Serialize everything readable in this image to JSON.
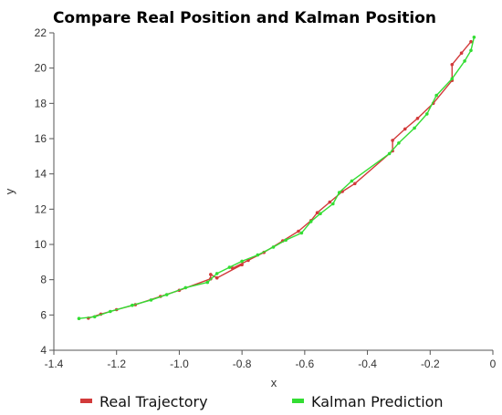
{
  "chart_data": {
    "type": "line",
    "title": "Compare Real  Position and Kalman Position",
    "xlabel": "x",
    "ylabel": "y",
    "xlim": [
      -1.4,
      0
    ],
    "ylim": [
      4,
      22
    ],
    "xticks": [
      -1.4,
      -1.2,
      -1.0,
      -0.8,
      -0.6,
      -0.4,
      -0.2,
      0
    ],
    "xtick_labels": [
      "-1.4",
      "-1.2",
      "-1.0",
      "-0.8",
      "-0.6",
      "-0.4",
      "-0.2",
      "0"
    ],
    "yticks": [
      4,
      6,
      8,
      10,
      12,
      14,
      16,
      18,
      20,
      22
    ],
    "ytick_labels": [
      "4",
      "6",
      "8",
      "10",
      "12",
      "14",
      "16",
      "18",
      "20",
      "22"
    ],
    "grid": false,
    "legend": "bottom",
    "series": [
      {
        "name": "Real Trajectory",
        "color": "#d23a3a",
        "points": [
          [
            -1.29,
            5.82
          ],
          [
            -1.25,
            6.05
          ],
          [
            -1.2,
            6.3
          ],
          [
            -1.14,
            6.58
          ],
          [
            -1.06,
            7.05
          ],
          [
            -1.0,
            7.4
          ],
          [
            -0.9,
            8.05
          ],
          [
            -0.9,
            8.3
          ],
          [
            -0.88,
            8.1
          ],
          [
            -0.8,
            8.85
          ],
          [
            -0.83,
            8.65
          ],
          [
            -0.78,
            9.1
          ],
          [
            -0.73,
            9.55
          ],
          [
            -0.67,
            10.2
          ],
          [
            -0.62,
            10.75
          ],
          [
            -0.58,
            11.35
          ],
          [
            -0.56,
            11.8
          ],
          [
            -0.52,
            12.4
          ],
          [
            -0.48,
            13.0
          ],
          [
            -0.44,
            13.45
          ],
          [
            -0.32,
            15.3
          ],
          [
            -0.32,
            15.9
          ],
          [
            -0.28,
            16.55
          ],
          [
            -0.24,
            17.15
          ],
          [
            -0.19,
            18.0
          ],
          [
            -0.13,
            19.3
          ],
          [
            -0.13,
            20.2
          ],
          [
            -0.1,
            20.85
          ],
          [
            -0.07,
            21.5
          ]
        ]
      },
      {
        "name": "Kalman Prediction",
        "color": "#33dd33",
        "points": [
          [
            -1.32,
            5.8
          ],
          [
            -1.27,
            5.9
          ],
          [
            -1.22,
            6.2
          ],
          [
            -1.15,
            6.55
          ],
          [
            -1.09,
            6.85
          ],
          [
            -1.04,
            7.15
          ],
          [
            -0.98,
            7.55
          ],
          [
            -0.91,
            7.85
          ],
          [
            -0.88,
            8.35
          ],
          [
            -0.84,
            8.7
          ],
          [
            -0.8,
            9.05
          ],
          [
            -0.75,
            9.4
          ],
          [
            -0.7,
            9.85
          ],
          [
            -0.66,
            10.25
          ],
          [
            -0.61,
            10.65
          ],
          [
            -0.58,
            11.3
          ],
          [
            -0.55,
            11.75
          ],
          [
            -0.51,
            12.3
          ],
          [
            -0.49,
            12.95
          ],
          [
            -0.45,
            13.6
          ],
          [
            -0.33,
            15.15
          ],
          [
            -0.3,
            15.75
          ],
          [
            -0.25,
            16.6
          ],
          [
            -0.21,
            17.4
          ],
          [
            -0.18,
            18.45
          ],
          [
            -0.13,
            19.4
          ],
          [
            -0.09,
            20.4
          ],
          [
            -0.07,
            21.0
          ],
          [
            -0.06,
            21.75
          ]
        ]
      }
    ]
  }
}
